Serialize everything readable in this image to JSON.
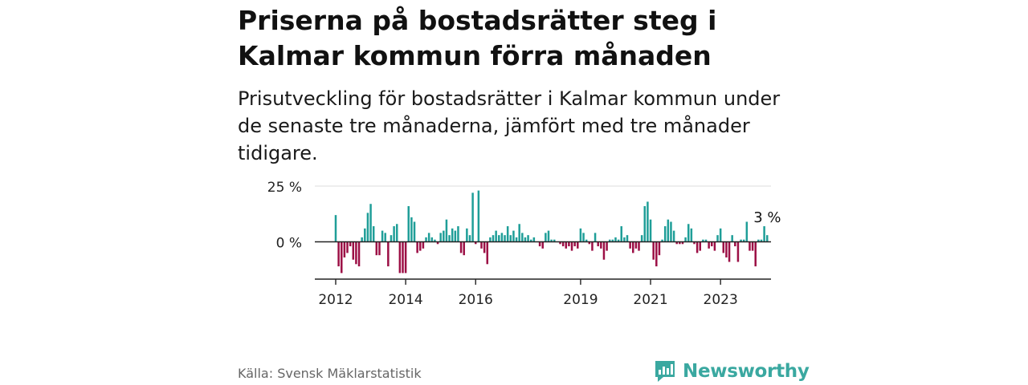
{
  "title": "Priserna på bostadsrätter steg i Kalmar kommun förra månaden",
  "subtitle": "Prisutveckling för bostadsrätter i Kalmar kommun under de senaste tre månaderna, jämfört med tre månader tidigare.",
  "source": "Källa: Svensk Mäklarstatistik",
  "brand": "Newsworthy",
  "colors": {
    "positive": "#1f9e98",
    "negative": "#9c0f45",
    "axis": "#222222",
    "grid": "#dddddd",
    "brand": "#3aa8a0"
  },
  "chart_data": {
    "type": "bar",
    "title": "",
    "xlabel": "",
    "ylabel": "",
    "ylim": [
      -16,
      26
    ],
    "yticks": [
      {
        "value": 25,
        "label": "25 %"
      },
      {
        "value": 0,
        "label": "0 %"
      }
    ],
    "xticks": [
      {
        "index": 0,
        "label": "2012"
      },
      {
        "index": 24,
        "label": "2014"
      },
      {
        "index": 48,
        "label": "2016"
      },
      {
        "index": 84,
        "label": "2019"
      },
      {
        "index": 108,
        "label": "2021"
      },
      {
        "index": 132,
        "label": "2023"
      }
    ],
    "start": "2012-01",
    "values": [
      12,
      -11,
      -14,
      -7,
      -5,
      -2,
      -8,
      -10,
      -11,
      2,
      6,
      13,
      17,
      7,
      -6,
      -6,
      5,
      4,
      -11,
      3,
      7,
      8,
      -14,
      -14,
      -14,
      16,
      11,
      9,
      -5,
      -4,
      -3,
      2,
      4,
      2,
      1,
      -1,
      4,
      5,
      10,
      3,
      6,
      5,
      7,
      -5,
      -6,
      6,
      3,
      22,
      -1,
      23,
      -3,
      -5,
      -10,
      2,
      3,
      5,
      3,
      4,
      3,
      7,
      3,
      5,
      2,
      8,
      4,
      2,
      3,
      1,
      2,
      0,
      -2,
      -3,
      4,
      5,
      1,
      1,
      0,
      -1,
      -2,
      -3,
      -2,
      -4,
      -2,
      -3,
      6,
      4,
      1,
      -1,
      -4,
      4,
      -2,
      -3,
      -8,
      -4,
      1,
      1,
      2,
      1,
      7,
      2,
      3,
      -3,
      -5,
      -3,
      -4,
      3,
      16,
      18,
      10,
      -8,
      -11,
      -6,
      1,
      7,
      10,
      9,
      5,
      -1,
      -1,
      -1,
      2,
      8,
      6,
      -1,
      -5,
      -4,
      1,
      1,
      -3,
      -2,
      -4,
      3,
      6,
      -5,
      -7,
      -9,
      3,
      -2,
      -9,
      1,
      1,
      9,
      -4,
      -4,
      -11,
      1,
      1,
      7,
      3
    ],
    "annotation": {
      "index": 148,
      "label": "3 %"
    }
  }
}
